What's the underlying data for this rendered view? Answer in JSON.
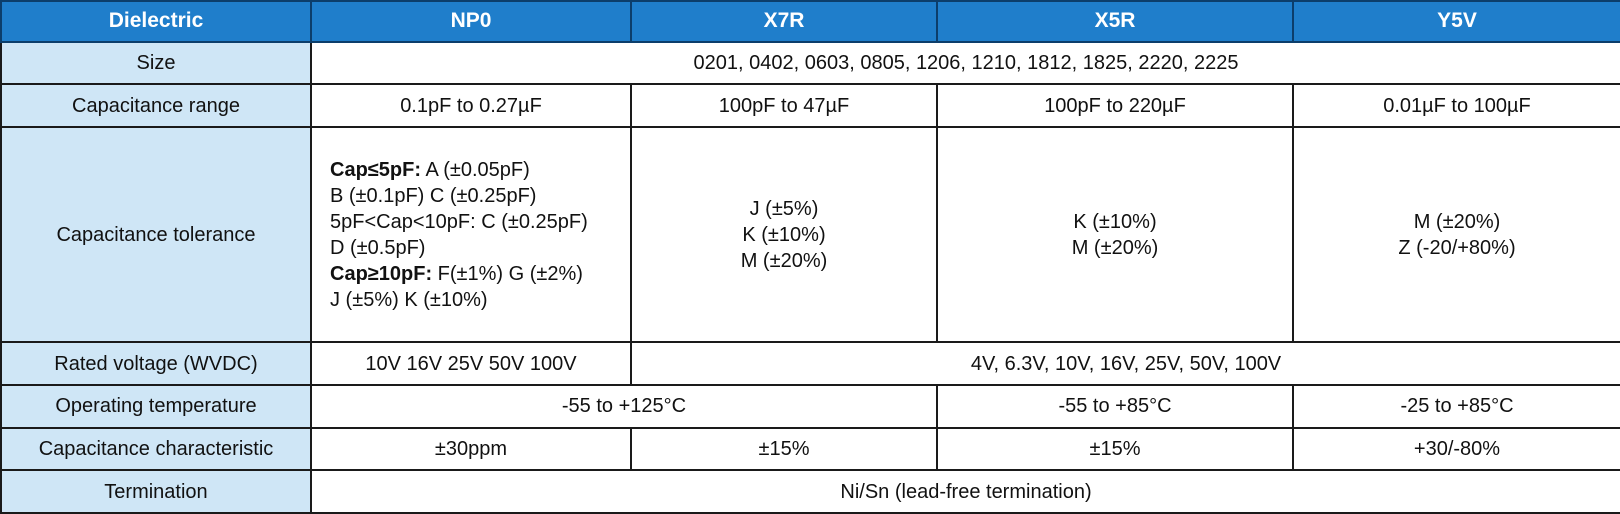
{
  "header": {
    "dielectric": "Dielectric",
    "np0": "NP0",
    "x7r": "X7R",
    "x5r": "X5R",
    "y5v": "Y5V"
  },
  "rows": {
    "size": {
      "label": "Size",
      "all": "0201, 0402, 0603, 0805, 1206, 1210, 1812, 1825, 2220, 2225"
    },
    "capacitance_range": {
      "label": "Capacitance range",
      "np0": "0.1pF to 0.27µF",
      "x7r": "100pF to 47µF",
      "x5r": "100pF to 220µF",
      "y5v": "0.01µF to 100µF"
    },
    "capacitance_tolerance": {
      "label": "Capacitance tolerance",
      "np0": {
        "line1_bold": "Cap≤5pF:",
        "line1_rest": " A (±0.05pF)",
        "line2": "B (±0.1pF) C (±0.25pF)",
        "line3": "5pF<Cap<10pF: C (±0.25pF)",
        "line4": "D (±0.5pF)",
        "line5_bold": "Cap≥10pF:",
        "line5_rest": " F(±1%) G (±2%)",
        "line6": "J (±5%) K (±10%)"
      },
      "x7r": [
        "J (±5%)",
        "K (±10%)",
        "M (±20%)"
      ],
      "x5r": [
        "K (±10%)",
        "M (±20%)"
      ],
      "y5v": [
        "M (±20%)",
        "Z (-20/+80%)"
      ]
    },
    "rated_voltage": {
      "label": "Rated voltage (WVDC)",
      "np0": "10V 16V 25V 50V 100V",
      "others": "4V, 6.3V, 10V, 16V, 25V, 50V, 100V"
    },
    "operating_temperature": {
      "label": "Operating temperature",
      "np0_x7r": "-55 to +125°C",
      "x5r": "-55 to +85°C",
      "y5v": "-25 to +85°C"
    },
    "capacitance_characteristic": {
      "label": "Capacitance characteristic",
      "np0": "±30ppm",
      "x7r": "±15%",
      "x5r": "±15%",
      "y5v": "+30/-80%"
    },
    "termination": {
      "label": "Termination",
      "all": "Ni/Sn (lead-free termination)"
    }
  },
  "colors": {
    "header_bg": "#1f7ecb",
    "label_bg": "#cfe6f6",
    "border": "#1a1a1a"
  }
}
